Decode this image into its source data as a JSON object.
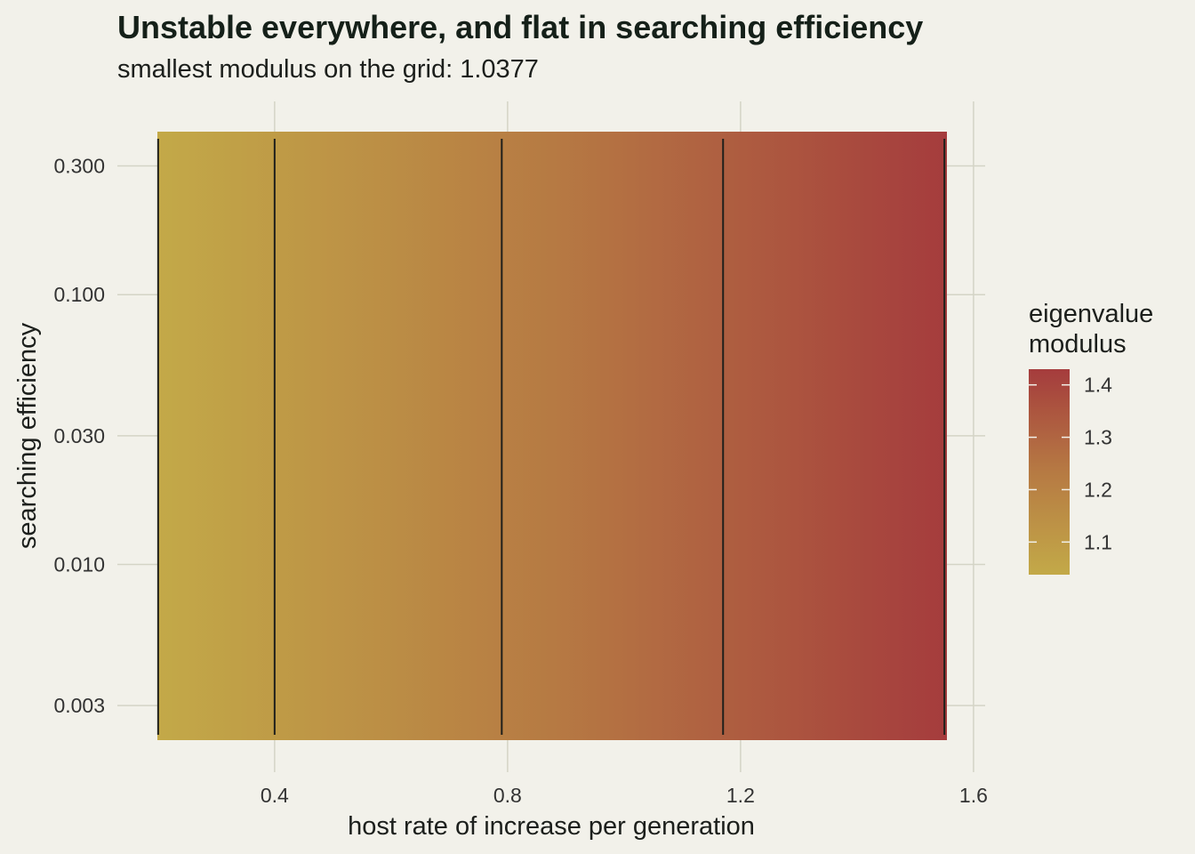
{
  "chart_data": {
    "type": "heatmap",
    "title": "Unstable everywhere, and flat in searching efficiency",
    "subtitle": "smallest modulus on the grid: 1.0377",
    "xlabel": "host rate of increase per generation",
    "ylabel": "searching efficiency",
    "x_range": [
      0.13,
      1.62
    ],
    "y_scale": "log",
    "y_range": [
      0.0017,
      0.52
    ],
    "x_ticks": [
      0.4,
      0.8,
      1.2,
      1.6
    ],
    "x_tick_labels": [
      "0.4",
      "0.8",
      "1.2",
      "1.6"
    ],
    "y_ticks": [
      0.003,
      0.01,
      0.03,
      0.1,
      0.3
    ],
    "y_tick_labels": [
      "0.003",
      "0.010",
      "0.030",
      "0.100",
      "0.300"
    ],
    "grid": true,
    "fill": {
      "x_min": 0.13,
      "x_max": 1.62,
      "modulus_at_x_min": 1.0377,
      "modulus_at_x_max": 1.43
    },
    "contour_lines_x": [
      0.2,
      0.4,
      0.79,
      1.17,
      1.55
    ],
    "legend": {
      "title_lines": [
        "eigenvalue",
        "modulus"
      ],
      "position": "right",
      "min": 1.0377,
      "max": 1.43,
      "breaks": [
        1.1,
        1.2,
        1.3,
        1.4
      ],
      "break_labels": [
        "1.1",
        "1.2",
        "1.3",
        "1.4"
      ],
      "color_low": "#c3a948",
      "color_mid": "#b67a43",
      "color_high": "#a53c3d"
    }
  }
}
